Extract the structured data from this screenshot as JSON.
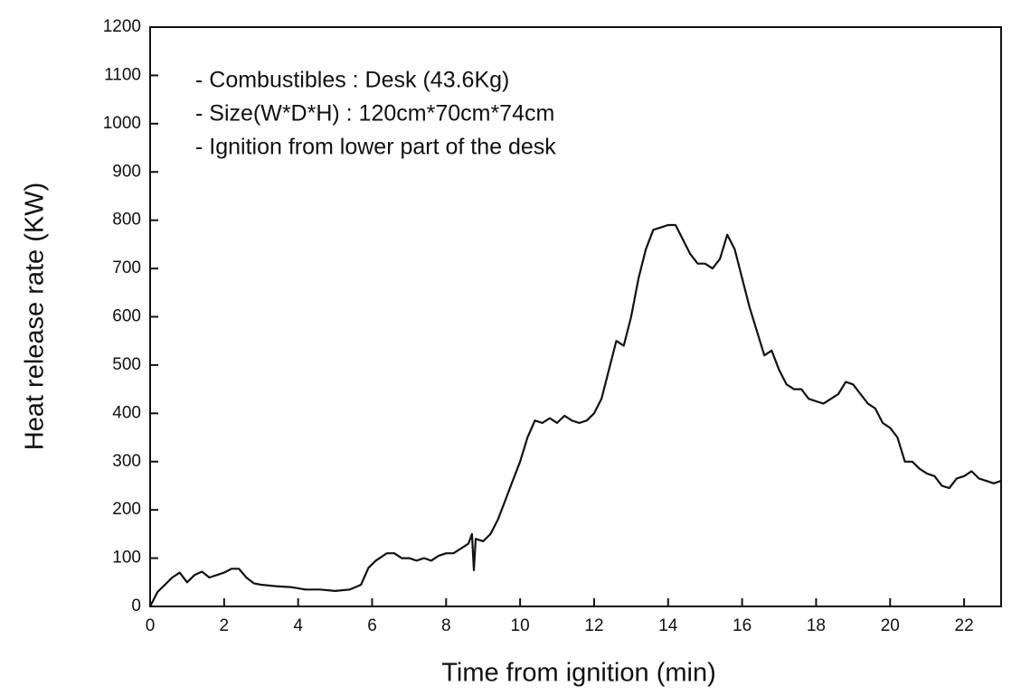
{
  "chart_data": {
    "type": "line",
    "x_label": "Time from ignition (min)",
    "y_label": "Heat release rate (KW)",
    "annotations": [
      "- Combustibles : Desk (43.6Kg)",
      "- Size(W*D*H) : 120cm*70cm*74cm",
      "- Ignition from lower part of the desk"
    ],
    "color": "#111111",
    "x": [
      0,
      0.2,
      0.4,
      0.6,
      0.8,
      1.0,
      1.2,
      1.4,
      1.6,
      1.8,
      2.0,
      2.2,
      2.4,
      2.6,
      2.8,
      3.0,
      3.4,
      3.8,
      4.2,
      4.6,
      5.0,
      5.4,
      5.7,
      5.9,
      6.1,
      6.4,
      6.6,
      6.8,
      7.0,
      7.2,
      7.4,
      7.6,
      7.8,
      8.0,
      8.2,
      8.4,
      8.6,
      8.7,
      8.75,
      8.8,
      9.0,
      9.2,
      9.4,
      9.6,
      9.8,
      10.0,
      10.2,
      10.4,
      10.6,
      10.8,
      11.0,
      11.2,
      11.4,
      11.6,
      11.8,
      12.0,
      12.2,
      12.4,
      12.6,
      12.8,
      13.0,
      13.2,
      13.4,
      13.6,
      13.8,
      14.0,
      14.2,
      14.4,
      14.6,
      14.8,
      15.0,
      15.2,
      15.4,
      15.6,
      15.8,
      16.0,
      16.2,
      16.4,
      16.6,
      16.8,
      17.0,
      17.2,
      17.4,
      17.6,
      17.8,
      18.0,
      18.2,
      18.4,
      18.6,
      18.8,
      19.0,
      19.2,
      19.4,
      19.6,
      19.8,
      20.0,
      20.2,
      20.4,
      20.6,
      20.8,
      21.0,
      21.2,
      21.4,
      21.6,
      21.8,
      22.0,
      22.2,
      22.4,
      22.6,
      22.8,
      23.0
    ],
    "values": [
      0,
      30,
      45,
      60,
      70,
      50,
      65,
      72,
      60,
      65,
      70,
      78,
      78,
      60,
      48,
      45,
      42,
      40,
      35,
      35,
      32,
      35,
      45,
      80,
      95,
      110,
      110,
      100,
      100,
      95,
      100,
      95,
      105,
      110,
      110,
      120,
      130,
      150,
      75,
      140,
      135,
      150,
      180,
      220,
      260,
      300,
      350,
      385,
      380,
      390,
      380,
      395,
      385,
      380,
      385,
      400,
      430,
      490,
      550,
      540,
      600,
      680,
      740,
      780,
      785,
      790,
      790,
      760,
      730,
      710,
      710,
      700,
      720,
      770,
      740,
      680,
      620,
      570,
      520,
      530,
      490,
      460,
      450,
      450,
      430,
      425,
      420,
      430,
      440,
      465,
      460,
      440,
      420,
      410,
      380,
      370,
      350,
      300,
      300,
      285,
      275,
      270,
      250,
      245,
      265,
      270,
      280,
      265,
      260,
      255,
      260
    ],
    "xlim": [
      0,
      23
    ],
    "xticks": [
      0,
      2,
      4,
      6,
      8,
      10,
      12,
      14,
      16,
      18,
      20,
      22
    ],
    "ylim": [
      0,
      1200
    ],
    "yticks": [
      0,
      100,
      200,
      300,
      400,
      500,
      600,
      700,
      800,
      900,
      1000,
      1100,
      1200
    ],
    "grid": false
  }
}
